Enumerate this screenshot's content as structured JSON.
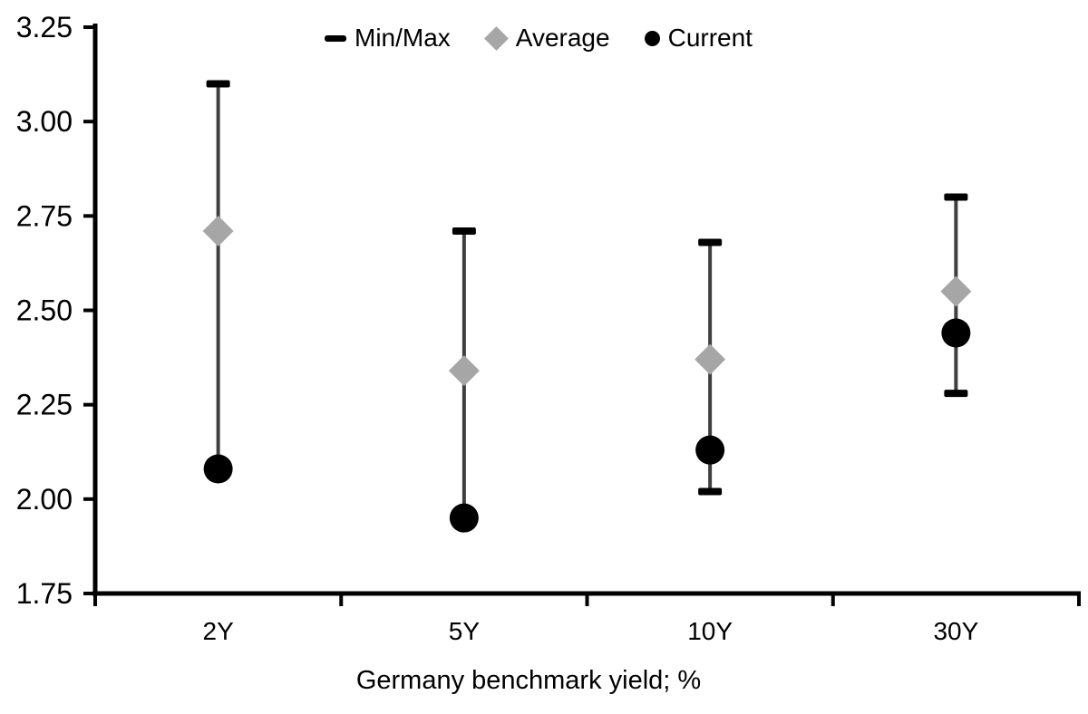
{
  "chart_data": {
    "type": "scatter",
    "subtype": "min-max-range-with-markers",
    "title": "",
    "xlabel": "Germany benchmark yield; %",
    "ylabel": "",
    "categories": [
      "2Y",
      "5Y",
      "10Y",
      "30Y"
    ],
    "series": [
      {
        "name": "Min/Max",
        "marker": "dash",
        "min": [
          2.08,
          1.95,
          2.02,
          2.28
        ],
        "max": [
          3.1,
          2.71,
          2.68,
          2.8
        ]
      },
      {
        "name": "Average",
        "marker": "diamond",
        "values": [
          2.71,
          2.34,
          2.37,
          2.55
        ]
      },
      {
        "name": "Current",
        "marker": "circle",
        "values": [
          2.08,
          1.95,
          2.13,
          2.44
        ]
      }
    ],
    "ylim": [
      1.75,
      3.25
    ],
    "y_tick_values": [
      3.25,
      3.0,
      2.75,
      2.5,
      2.25,
      2.0,
      1.75
    ],
    "y_tick_labels": [
      "3.25",
      "3.00",
      "2.75",
      "2.50",
      "2.25",
      "2.00",
      "1.75"
    ],
    "grid": false,
    "legend_position": "top-center",
    "colors": {
      "range_line": "#3f3f3f",
      "cap": "#000000",
      "average": "#a6a6a6",
      "current": "#000000",
      "axis": "#000000",
      "text": "#000000",
      "background": "#ffffff"
    }
  }
}
